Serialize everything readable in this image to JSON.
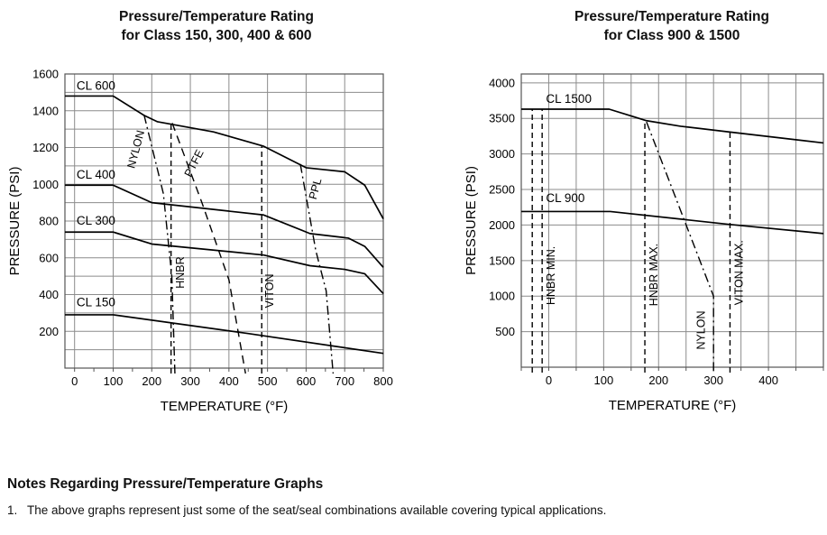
{
  "notes": {
    "heading": "Notes Regarding Pressure/Temperature Graphs",
    "items": [
      {
        "number": "1.",
        "text": "The above graphs represent just some of the seat/seal combinations available covering typical applications."
      }
    ]
  },
  "chart_data": [
    {
      "type": "line",
      "title": "Pressure/Temperature Rating for Class 150, 300, 400 & 600",
      "title_lines": [
        "Pressure/Temperature Rating",
        "for Class 150, 300, 400 & 600"
      ],
      "xlabel": "TEMPERATURE (°F)",
      "ylabel": "PRESSURE (PSI)",
      "xlim": [
        -25,
        800
      ],
      "ylim": [
        0,
        1600
      ],
      "x_grid_step": 100,
      "y_grid_step": 100,
      "x_minor_tick_step": 50,
      "x_tick_labels": [
        0,
        100,
        200,
        300,
        400,
        500,
        600,
        700,
        800
      ],
      "y_tick_labels": [
        200,
        400,
        600,
        800,
        1000,
        1200,
        1400,
        1600
      ],
      "grid": "on",
      "legend": "none",
      "grid_color": "#8c8c8c",
      "axis_color": "#555555",
      "line_color": "#000000",
      "series": [
        {
          "name": "CL 600",
          "points": [
            [
              -25,
              1480
            ],
            [
              100,
              1480
            ],
            [
              180,
              1375
            ],
            [
              215,
              1340
            ],
            [
              360,
              1285
            ],
            [
              490,
              1207
            ],
            [
              600,
              1090
            ],
            [
              700,
              1068
            ],
            [
              752,
              995
            ],
            [
              800,
              812
            ]
          ],
          "label": {
            "text": "CL 600",
            "x": 5,
            "y": 1515,
            "rotate": 0
          }
        },
        {
          "name": "CL 400",
          "points": [
            [
              -25,
              995
            ],
            [
              100,
              995
            ],
            [
              200,
              900
            ],
            [
              490,
              833
            ],
            [
              610,
              732
            ],
            [
              710,
              707
            ],
            [
              752,
              662
            ],
            [
              800,
              548
            ]
          ],
          "label": {
            "text": "CL 400",
            "x": 5,
            "y": 1030,
            "rotate": 0
          }
        },
        {
          "name": "CL 300",
          "points": [
            [
              -25,
              740
            ],
            [
              100,
              740
            ],
            [
              200,
              675
            ],
            [
              490,
              615
            ],
            [
              610,
              557
            ],
            [
              700,
              537
            ],
            [
              752,
              513
            ],
            [
              800,
              405
            ]
          ],
          "label": {
            "text": "CL 300",
            "x": 5,
            "y": 780,
            "rotate": 0
          }
        },
        {
          "name": "CL 150",
          "points": [
            [
              -25,
              290
            ],
            [
              100,
              290
            ],
            [
              450,
              188
            ],
            [
              800,
              80
            ]
          ],
          "label": {
            "text": "CL 150",
            "x": 5,
            "y": 336,
            "rotate": 0
          }
        }
      ],
      "limit_lines": [
        {
          "name": "NYLON",
          "dash": "dashdot",
          "polylines": [
            [
              [
                180,
                1378
              ],
              [
                230,
                950
              ],
              [
                252,
                500
              ],
              [
                260,
                0
              ]
            ]
          ],
          "label": {
            "text": "NYLON",
            "x": 168,
            "y": 1185,
            "rotate": -75
          }
        },
        {
          "name": "PTFE",
          "dash": "longdash",
          "polylines": [
            [
              [
                253,
                1333
              ],
              [
                330,
                900
              ],
              [
                400,
                480
              ],
              [
                443,
                0
              ]
            ]
          ],
          "label": {
            "text": "PTFE",
            "x": 318,
            "y": 1105,
            "rotate": -63
          }
        },
        {
          "name": "HNBR",
          "dash": "dash",
          "polylines": [
            [
              [
                250,
                0
              ],
              [
                250,
                1333
              ]
            ]
          ],
          "label": {
            "text": "HNBR",
            "x": 283,
            "y": 520,
            "rotate": -90
          }
        },
        {
          "name": "VITON",
          "dash": "dash",
          "polylines": [
            [
              [
                485,
                0
              ],
              [
                485,
                1207
              ]
            ]
          ],
          "label": {
            "text": "VITON",
            "x": 515,
            "y": 420,
            "rotate": -90
          }
        },
        {
          "name": "PPL",
          "dash": "dashdot",
          "polylines": [
            [
              [
                585,
                1110
              ],
              [
                625,
                640
              ],
              [
                652,
                420
              ],
              [
                670,
                0
              ]
            ]
          ],
          "label": {
            "text": "PPL",
            "x": 633,
            "y": 970,
            "rotate": -75
          }
        }
      ]
    },
    {
      "type": "line",
      "title": "Pressure/Temperature Rating for Class 900 & 1500",
      "title_lines": [
        "Pressure/Temperature Rating",
        "for Class 900 & 1500"
      ],
      "xlabel": "TEMPERATURE (°F)",
      "ylabel": "PRESSURE (PSI)",
      "xlim": [
        -50,
        500
      ],
      "ylim": [
        0,
        4125
      ],
      "x_grid_step": 50,
      "y_grid_step": 500,
      "x_minor_tick_step": 50,
      "x_tick_labels": [
        0,
        100,
        200,
        300,
        400
      ],
      "y_tick_labels": [
        500,
        1000,
        1500,
        2000,
        2500,
        3000,
        3500,
        4000
      ],
      "grid": "on",
      "legend": "none",
      "grid_color": "#8c8c8c",
      "axis_color": "#555555",
      "line_color": "#000000",
      "series": [
        {
          "name": "CL 1500",
          "points": [
            [
              -50,
              3630
            ],
            [
              110,
              3630
            ],
            [
              178,
              3468
            ],
            [
              240,
              3390
            ],
            [
              330,
              3308
            ],
            [
              500,
              3155
            ]
          ],
          "label": {
            "text": "CL 1500",
            "x": -5,
            "y": 3720,
            "rotate": 0
          }
        },
        {
          "name": "CL 900",
          "points": [
            [
              -50,
              2190
            ],
            [
              112,
              2190
            ],
            [
              330,
              2008
            ],
            [
              500,
              1880
            ]
          ],
          "label": {
            "text": "CL 900",
            "x": -5,
            "y": 2320,
            "rotate": 0
          }
        }
      ],
      "limit_lines": [
        {
          "name": "HNBR MIN.",
          "dash": "dash",
          "polylines": [
            [
              [
                -30,
                0
              ],
              [
                -30,
                3630
              ]
            ],
            [
              [
                -12,
                0
              ],
              [
                -12,
                3630
              ]
            ]
          ],
          "label": {
            "text": "HNBR MIN.",
            "x": 11,
            "y": 1290,
            "rotate": -90
          }
        },
        {
          "name": "HNBR MAX.",
          "dash": "dash",
          "polylines": [
            [
              [
                175,
                0
              ],
              [
                175,
                3470
              ]
            ]
          ],
          "label": {
            "text": "HNBR MAX.",
            "x": 198,
            "y": 1300,
            "rotate": -90
          }
        },
        {
          "name": "NYLON",
          "dash": "dashdot",
          "polylines": [
            [
              [
                178,
                3450
              ],
              [
                300,
                1000
              ],
              [
                300,
                0
              ]
            ]
          ],
          "label": {
            "text": "NYLON",
            "x": 284,
            "y": 520,
            "rotate": -90
          }
        },
        {
          "name": "VITON MAX.",
          "dash": "dash",
          "polylines": [
            [
              [
                330,
                0
              ],
              [
                330,
                3308
              ]
            ]
          ],
          "label": {
            "text": "VITON MAX.",
            "x": 353,
            "y": 1330,
            "rotate": -90
          }
        }
      ]
    }
  ]
}
